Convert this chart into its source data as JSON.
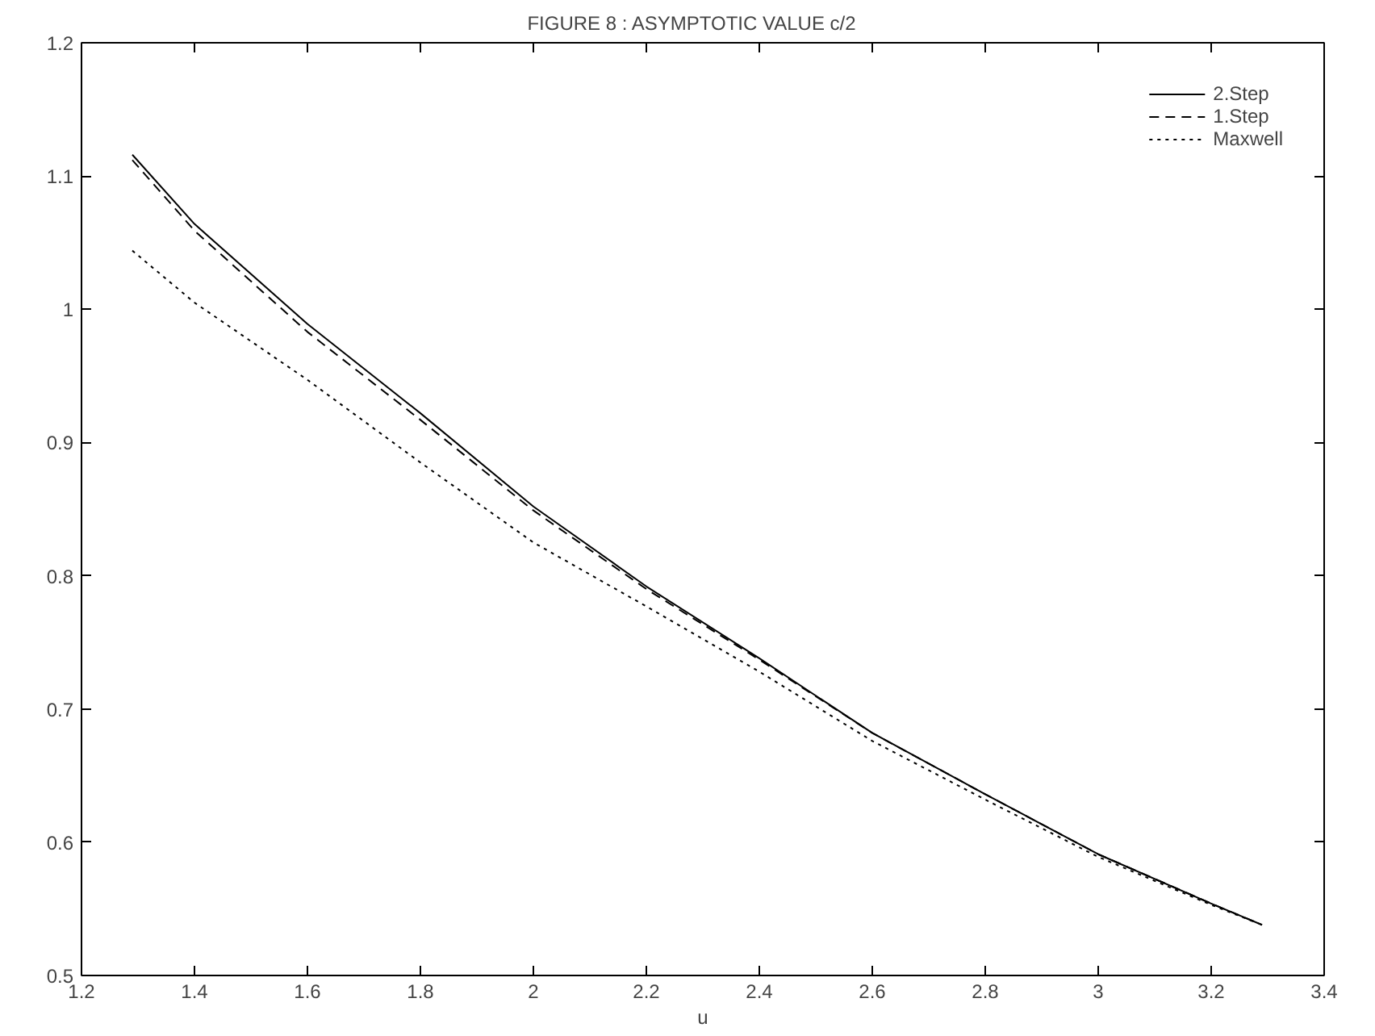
{
  "chart_data": {
    "type": "line",
    "title": "FIGURE 8 :    ASYMPTOTIC VALUE  c/2",
    "xlabel": "u",
    "x": [
      1.29,
      1.4,
      1.6,
      1.8,
      2.0,
      2.2,
      2.4,
      2.6,
      2.8,
      3.0,
      3.2,
      3.29
    ],
    "series": [
      {
        "name": "2.Step",
        "color": "#000000",
        "line_style": "solid",
        "values": [
          1.116,
          1.064,
          0.989,
          0.922,
          0.852,
          0.792,
          0.738,
          0.682,
          0.636,
          0.591,
          0.554,
          0.538
        ]
      },
      {
        "name": "1.Step",
        "color": "#000000",
        "line_style": "dashed",
        "values": [
          1.112,
          1.059,
          0.983,
          0.917,
          0.849,
          0.79,
          0.737,
          0.682,
          0.636,
          0.591,
          0.554,
          0.538
        ]
      },
      {
        "name": "Maxwell",
        "color": "#000000",
        "line_style": "dotted",
        "values": [
          1.044,
          1.005,
          0.947,
          0.885,
          0.825,
          0.777,
          0.728,
          0.676,
          0.632,
          0.589,
          0.553,
          0.538
        ]
      }
    ],
    "xlim": [
      1.2,
      3.4
    ],
    "ylim": [
      0.5,
      1.2
    ],
    "xticks": [
      1.2,
      1.4,
      1.6,
      1.8,
      2,
      2.2,
      2.4,
      2.6,
      2.8,
      3,
      3.2,
      3.4
    ],
    "yticks": [
      0.5,
      0.6,
      0.7,
      0.8,
      0.9,
      1,
      1.1,
      1.2
    ],
    "grid": false,
    "legend": "top right",
    "marker": "none"
  }
}
